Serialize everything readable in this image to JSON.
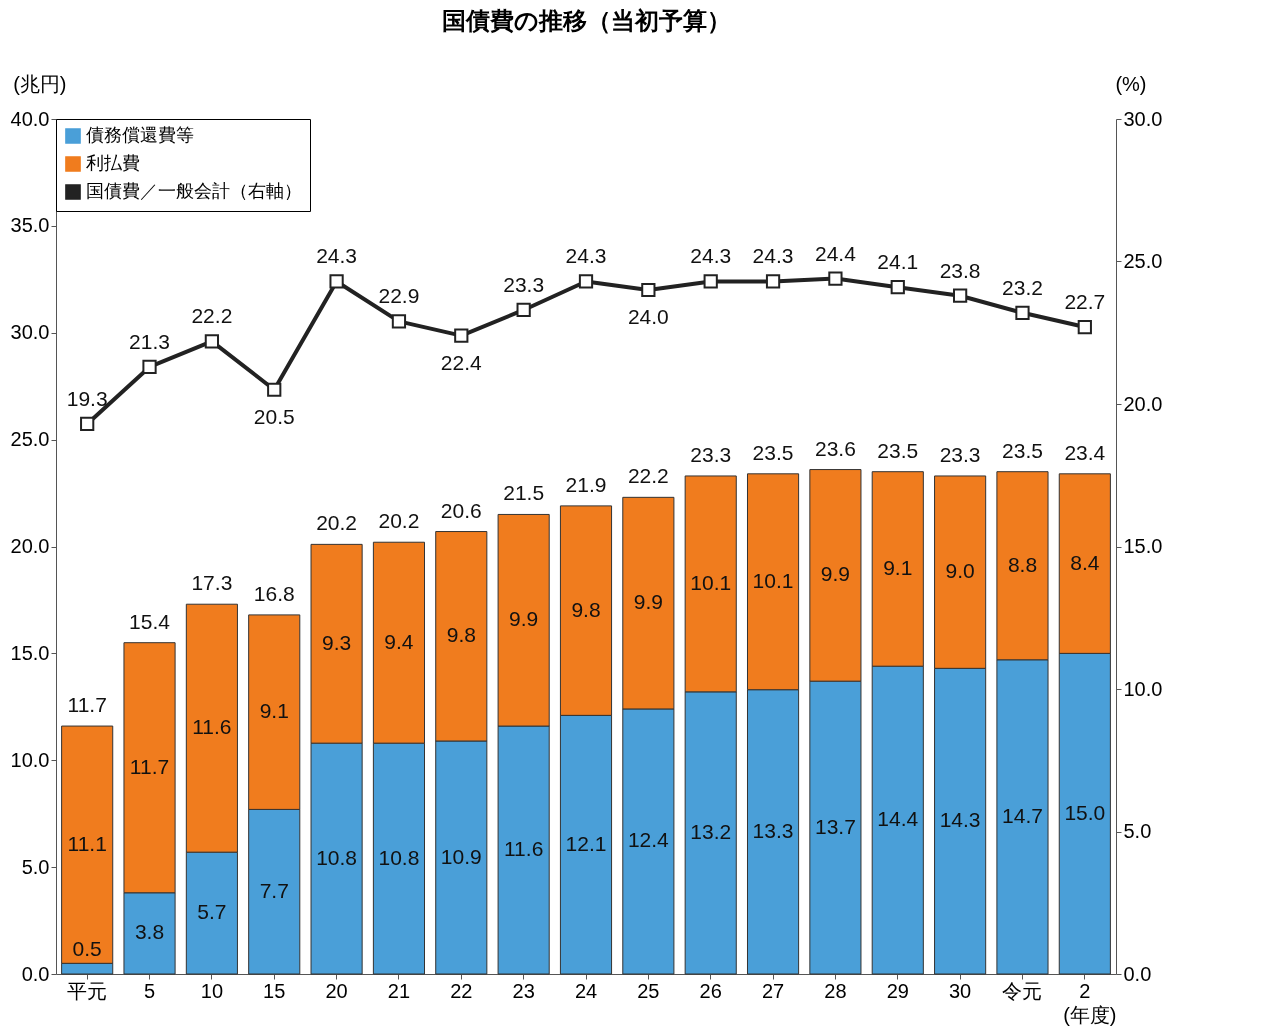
{
  "chart_data": {
    "type": "bar",
    "title": "国債費の推移（当初予算）",
    "ylabel": "(兆円)",
    "y2label": "(%)",
    "xlabel": "(年度)",
    "categories": [
      "平元",
      "5",
      "10",
      "15",
      "20",
      "21",
      "22",
      "23",
      "24",
      "25",
      "26",
      "27",
      "28",
      "29",
      "30",
      "令元",
      "2"
    ],
    "stacked": true,
    "grid": false,
    "legend": "top left",
    "marker": "square",
    "line_style": "solid",
    "series": [
      {
        "name": "債務償還費等",
        "color": "#4a9fd8",
        "values": [
          0.5,
          3.8,
          5.7,
          7.7,
          10.8,
          10.8,
          10.9,
          11.6,
          12.1,
          12.4,
          13.2,
          13.3,
          13.7,
          14.4,
          14.3,
          14.7,
          15.0
        ],
        "value_labels": [
          "0.5",
          "3.8",
          "5.7",
          "7.7",
          "10.8",
          "10.8",
          "10.9",
          "11.6",
          "12.1",
          "12.4",
          "13.2",
          "13.3",
          "13.7",
          "14.4",
          "14.3",
          "14.7",
          "15.0"
        ]
      },
      {
        "name": "利払費",
        "color": "#f07c1e",
        "values": [
          11.1,
          11.7,
          11.6,
          9.1,
          9.3,
          9.4,
          9.8,
          9.9,
          9.8,
          9.9,
          10.1,
          10.1,
          9.9,
          9.1,
          9.0,
          8.8,
          8.4
        ],
        "value_labels": [
          "11.1",
          "11.7",
          "11.6",
          "9.1",
          "9.3",
          "9.4",
          "9.8",
          "9.9",
          "9.8",
          "9.9",
          "10.1",
          "10.1",
          "9.9",
          "9.1",
          "9.0",
          "8.8",
          "8.4"
        ]
      },
      {
        "name": "国債費／一般会計（右軸）",
        "type": "line",
        "axis": "y2",
        "color": "#222222",
        "values": [
          19.3,
          21.3,
          22.2,
          20.5,
          24.3,
          22.9,
          22.4,
          23.3,
          24.3,
          24.0,
          24.3,
          24.3,
          24.4,
          24.1,
          23.8,
          23.2,
          22.7
        ],
        "value_labels": [
          "19.3",
          "21.3",
          "22.2",
          "20.5",
          "24.3",
          "22.9",
          "22.4",
          "23.3",
          "24.3",
          "24.0",
          "24.3",
          "24.3",
          "24.4",
          "24.1",
          "23.8",
          "23.2",
          "22.7"
        ]
      }
    ],
    "totals": [
      "11.7",
      "15.4",
      "17.3",
      "16.8",
      "20.2",
      "20.2",
      "20.6",
      "21.5",
      "21.9",
      "22.2",
      "23.3",
      "23.5",
      "23.6",
      "23.5",
      "23.3",
      "23.5",
      "23.4"
    ],
    "ylim": [
      0,
      40
    ],
    "yticks": [
      {
        "value": 0,
        "label": "0.0"
      },
      {
        "value": 5,
        "label": "5.0"
      },
      {
        "value": 10,
        "label": "10.0"
      },
      {
        "value": 15,
        "label": "15.0"
      },
      {
        "value": 20,
        "label": "20.0"
      },
      {
        "value": 25,
        "label": "25.0"
      },
      {
        "value": 30,
        "label": "30.0"
      },
      {
        "value": 35,
        "label": "35.0"
      },
      {
        "value": 40,
        "label": "40.0"
      }
    ],
    "y2lim": [
      0,
      30
    ],
    "y2ticks": [
      {
        "value": 0,
        "label": "0.0"
      },
      {
        "value": 5,
        "label": "5.0"
      },
      {
        "value": 10,
        "label": "10.0"
      },
      {
        "value": 15,
        "label": "15.0"
      },
      {
        "value": 20,
        "label": "20.0"
      },
      {
        "value": 25,
        "label": "25.0"
      },
      {
        "value": 30,
        "label": "30.0"
      }
    ]
  }
}
